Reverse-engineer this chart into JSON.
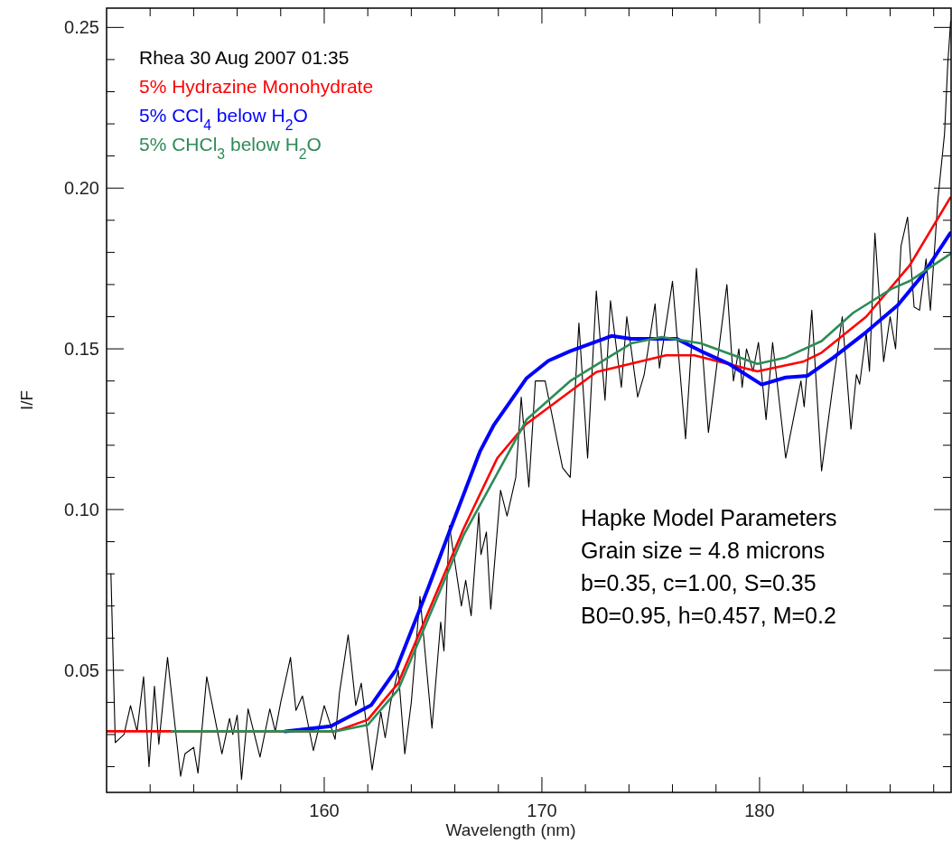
{
  "chart_data": {
    "type": "line",
    "xlabel": "Wavelength (nm)",
    "ylabel": "I/F",
    "xlim": [
      150,
      188.8
    ],
    "ylim": [
      0.012,
      0.256
    ],
    "xticks": [
      {
        "value": 152,
        "label": null
      },
      {
        "value": 154,
        "label": null
      },
      {
        "value": 156,
        "label": null
      },
      {
        "value": 158,
        "label": null
      },
      160,
      {
        "value": 162,
        "label": null
      },
      {
        "value": 164,
        "label": null
      },
      {
        "value": 166,
        "label": null
      },
      {
        "value": 168,
        "label": null
      },
      170,
      {
        "value": 172,
        "label": null
      },
      {
        "value": 174,
        "label": null
      },
      {
        "value": 176,
        "label": null
      },
      {
        "value": 178,
        "label": null
      },
      180,
      {
        "value": 182,
        "label": null
      },
      {
        "value": 184,
        "label": null
      },
      {
        "value": 186,
        "label": null
      },
      {
        "value": 188,
        "label": null
      }
    ],
    "yticks": [
      {
        "value": 0.02,
        "label": null
      },
      {
        "value": 0.03,
        "label": null
      },
      {
        "value": 0.04,
        "label": null
      },
      {
        "value": 0.05,
        "label": "0.05"
      },
      {
        "value": 0.06,
        "label": null
      },
      {
        "value": 0.07,
        "label": null
      },
      {
        "value": 0.08,
        "label": null
      },
      {
        "value": 0.09,
        "label": null
      },
      {
        "value": 0.1,
        "label": "0.10"
      },
      {
        "value": 0.11,
        "label": null
      },
      {
        "value": 0.12,
        "label": null
      },
      {
        "value": 0.13,
        "label": null
      },
      {
        "value": 0.14,
        "label": null
      },
      {
        "value": 0.15,
        "label": "0.15"
      },
      {
        "value": 0.16,
        "label": null
      },
      {
        "value": 0.17,
        "label": null
      },
      {
        "value": 0.18,
        "label": null
      },
      {
        "value": 0.19,
        "label": null
      },
      {
        "value": 0.2,
        "label": "0.20"
      },
      {
        "value": 0.21,
        "label": null
      },
      {
        "value": 0.22,
        "label": null
      },
      {
        "value": 0.23,
        "label": null
      },
      {
        "value": 0.24,
        "label": null
      },
      {
        "value": 0.25,
        "label": "0.25"
      }
    ],
    "grid": false,
    "legend": "top left",
    "marker": "none",
    "line_style": "solid",
    "annotations": [
      "Hapke Model Parameters",
      "Grain size = 4.8 microns",
      "b=0.35, c=1.00, S=0.35",
      "B0=0.95, h=0.457, M=0.2"
    ],
    "series": [
      {
        "name": "Rhea 30 Aug 2007 01:35",
        "color": "#000000",
        "x": [
          150.2,
          150.4,
          150.8,
          151.1,
          151.4,
          151.7,
          151.95,
          152.2,
          152.4,
          152.8,
          153.4,
          153.6,
          154.0,
          154.2,
          154.6,
          155.3,
          155.65,
          155.8,
          156.0,
          156.2,
          156.5,
          157.05,
          157.5,
          157.75,
          158.0,
          158.45,
          158.7,
          159.0,
          159.5,
          160.0,
          160.5,
          160.7,
          161.1,
          161.45,
          161.7,
          162.2,
          162.6,
          162.8,
          163.05,
          163.4,
          163.7,
          164.0,
          164.4,
          164.95,
          165.35,
          165.5,
          165.75,
          166.3,
          166.5,
          166.75,
          167.1,
          167.2,
          167.45,
          167.65,
          168.1,
          168.4,
          168.8,
          169.05,
          169.4,
          169.7,
          170.15,
          170.95,
          171.3,
          171.7,
          172.1,
          172.5,
          172.9,
          173.15,
          173.65,
          173.9,
          174.4,
          174.7,
          175.2,
          175.4,
          176.0,
          176.6,
          177.1,
          177.65,
          178.5,
          178.8,
          179.05,
          179.2,
          179.4,
          179.7,
          179.95,
          180.3,
          180.6,
          181.2,
          181.9,
          182.05,
          182.4,
          182.85,
          183.3,
          183.8,
          184.2,
          184.45,
          184.6,
          184.9,
          185.05,
          185.3,
          185.7,
          186.0,
          186.25,
          186.5,
          186.8,
          187.1,
          187.35,
          187.65,
          187.85,
          188.2,
          188.5,
          188.65,
          188.78
        ],
        "values": [
          0.08,
          0.0275,
          0.03,
          0.039,
          0.031,
          0.048,
          0.02,
          0.045,
          0.027,
          0.054,
          0.017,
          0.024,
          0.026,
          0.018,
          0.048,
          0.024,
          0.035,
          0.03,
          0.036,
          0.016,
          0.038,
          0.023,
          0.038,
          0.031,
          0.04,
          0.054,
          0.0375,
          0.042,
          0.025,
          0.039,
          0.0285,
          0.043,
          0.061,
          0.039,
          0.046,
          0.019,
          0.037,
          0.029,
          0.04,
          0.05,
          0.024,
          0.04,
          0.073,
          0.032,
          0.065,
          0.056,
          0.095,
          0.07,
          0.078,
          0.067,
          0.099,
          0.086,
          0.093,
          0.069,
          0.106,
          0.098,
          0.11,
          0.135,
          0.107,
          0.14,
          0.14,
          0.113,
          0.11,
          0.158,
          0.116,
          0.168,
          0.134,
          0.165,
          0.138,
          0.16,
          0.135,
          0.142,
          0.164,
          0.144,
          0.171,
          0.122,
          0.175,
          0.124,
          0.17,
          0.14,
          0.15,
          0.138,
          0.15,
          0.143,
          0.152,
          0.128,
          0.152,
          0.116,
          0.14,
          0.132,
          0.162,
          0.112,
          0.135,
          0.16,
          0.125,
          0.142,
          0.139,
          0.155,
          0.143,
          0.186,
          0.146,
          0.16,
          0.15,
          0.182,
          0.191,
          0.163,
          0.162,
          0.178,
          0.162,
          0.197,
          0.217,
          0.239,
          0.252
        ]
      },
      {
        "name": "5% Hydrazine Monohydrate",
        "color": "#ff0000",
        "x": [
          150,
          160.5,
          162,
          163.4,
          166.4,
          167.1,
          167.95,
          169.26,
          172.5,
          175.7,
          177.0,
          179.9,
          182.0,
          182.85,
          184.9,
          186.9,
          188.76
        ],
        "values": [
          0.031,
          0.031,
          0.0346,
          0.046,
          0.094,
          0.104,
          0.116,
          0.1265,
          0.1428,
          0.148,
          0.148,
          0.143,
          0.146,
          0.1488,
          0.16,
          0.176,
          0.197
        ]
      },
      {
        "name": "5% CCl$_{4}$ below H$_{2}$O",
        "color": "#0000ff",
        "x": [
          158.2,
          160.3,
          162.15,
          163.3,
          164.8,
          165.8,
          167.15,
          167.8,
          169.3,
          170.3,
          171.3,
          173.2,
          174.1,
          176.2,
          177.3,
          178.6,
          180.1,
          181.2,
          182.2,
          183.4,
          184.9,
          186.35,
          187.5,
          188.76
        ],
        "values": [
          0.031,
          0.0326,
          0.0391,
          0.0502,
          0.076,
          0.094,
          0.118,
          0.1264,
          0.1409,
          0.1463,
          0.1493,
          0.154,
          0.1531,
          0.1531,
          0.1493,
          0.1453,
          0.1389,
          0.1411,
          0.1416,
          0.1473,
          0.1552,
          0.1636,
          0.173,
          0.186
        ]
      },
      {
        "name": "5% CHCl$_{3}$ below H$_{2}$O",
        "color": "#2e8b57",
        "x": [
          153,
          160.5,
          162,
          163.4,
          166.4,
          169.3,
          171.3,
          174.1,
          175.5,
          177.3,
          179.9,
          181.2,
          182.85,
          184.3,
          186.05,
          186.9,
          188.76
        ],
        "values": [
          0.031,
          0.031,
          0.033,
          0.044,
          0.092,
          0.128,
          0.14,
          0.1517,
          0.1537,
          0.1517,
          0.1453,
          0.1473,
          0.1524,
          0.1612,
          0.1686,
          0.1711,
          0.1795
        ]
      }
    ]
  }
}
